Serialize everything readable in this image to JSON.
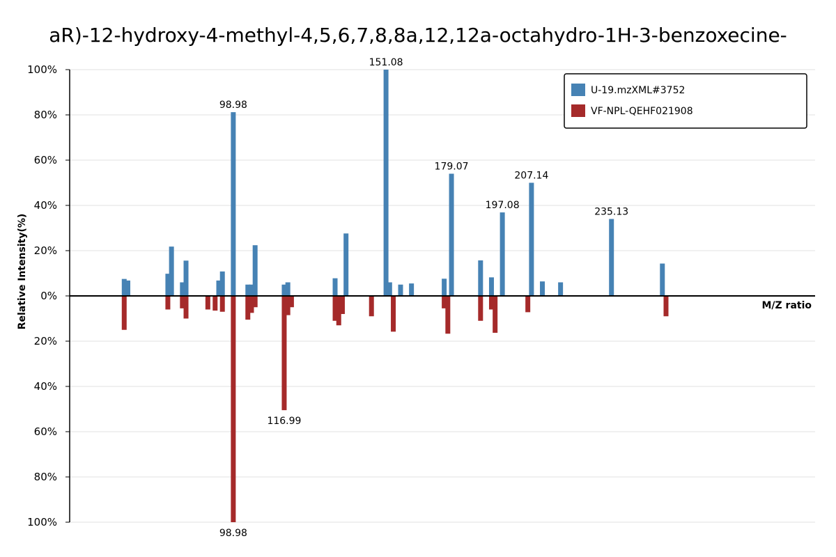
{
  "chart_data": {
    "type": "bar",
    "title": "aR)-12-hydroxy-4-methyl-4,5,6,7,8,8a,12,12a-octahydro-1H-3-benzoxecine-",
    "xlabel": "M/Z ratio",
    "ylabel": "Relative Intensity(%)",
    "ylim": [
      -100,
      100
    ],
    "y_ticks": [
      "100%",
      "80%",
      "60%",
      "40%",
      "20%",
      "0%",
      "20%",
      "40%",
      "60%",
      "80%",
      "100%"
    ],
    "legend_position": "top-right",
    "series": [
      {
        "name": "U-19.mzXML#3752",
        "color": "#4682B4",
        "direction": "up",
        "peaks": [
          {
            "mz": 55.0,
            "intensity": 7.5
          },
          {
            "mz": 56.0,
            "intensity": 6.8
          },
          {
            "mz": 67.0,
            "intensity": 9.8
          },
          {
            "mz": 68.0,
            "intensity": 21.8
          },
          {
            "mz": 71.0,
            "intensity": 6.0
          },
          {
            "mz": 72.0,
            "intensity": 15.6
          },
          {
            "mz": 81.0,
            "intensity": 6.8
          },
          {
            "mz": 82.0,
            "intensity": 10.8
          },
          {
            "mz": 85.0,
            "intensity": 81.2
          },
          {
            "mz": 89.0,
            "intensity": 5.0
          },
          {
            "mz": 90.0,
            "intensity": 5.0
          },
          {
            "mz": 91.0,
            "intensity": 22.4
          },
          {
            "mz": 99.0,
            "intensity": 5.0
          },
          {
            "mz": 100.0,
            "intensity": 6.0
          },
          {
            "mz": 113.0,
            "intensity": 7.8
          },
          {
            "mz": 116.0,
            "intensity": 27.6
          },
          {
            "mz": 127.0,
            "intensity": 100.0
          },
          {
            "mz": 128.0,
            "intensity": 6.0
          },
          {
            "mz": 131.0,
            "intensity": 5.0
          },
          {
            "mz": 134.0,
            "intensity": 5.5
          },
          {
            "mz": 143.0,
            "intensity": 7.6
          },
          {
            "mz": 145.0,
            "intensity": 54.0
          },
          {
            "mz": 153.0,
            "intensity": 15.7
          },
          {
            "mz": 156.0,
            "intensity": 8.2
          },
          {
            "mz": 159.0,
            "intensity": 36.9
          },
          {
            "mz": 167.0,
            "intensity": 50.0
          },
          {
            "mz": 170.0,
            "intensity": 6.4
          },
          {
            "mz": 175.0,
            "intensity": 6.0
          },
          {
            "mz": 189.0,
            "intensity": 34.0
          },
          {
            "mz": 203.0,
            "intensity": 14.3
          }
        ]
      },
      {
        "name": "VF-NPL-QEHF021908",
        "color": "#A52A2A",
        "direction": "down",
        "peaks": [
          {
            "mz": 55.0,
            "intensity": 15.0
          },
          {
            "mz": 67.0,
            "intensity": 6.0
          },
          {
            "mz": 71.0,
            "intensity": 5.5
          },
          {
            "mz": 72.0,
            "intensity": 10.0
          },
          {
            "mz": 78.0,
            "intensity": 6.0
          },
          {
            "mz": 80.0,
            "intensity": 6.5
          },
          {
            "mz": 82.0,
            "intensity": 7.0
          },
          {
            "mz": 85.0,
            "intensity": 100.0
          },
          {
            "mz": 89.0,
            "intensity": 10.5
          },
          {
            "mz": 90.0,
            "intensity": 7.5
          },
          {
            "mz": 91.0,
            "intensity": 5.0
          },
          {
            "mz": 99.0,
            "intensity": 50.5
          },
          {
            "mz": 100.0,
            "intensity": 8.5
          },
          {
            "mz": 101.0,
            "intensity": 5.0
          },
          {
            "mz": 113.0,
            "intensity": 11.0
          },
          {
            "mz": 114.0,
            "intensity": 13.0
          },
          {
            "mz": 115.0,
            "intensity": 8.0
          },
          {
            "mz": 123.0,
            "intensity": 9.0
          },
          {
            "mz": 129.0,
            "intensity": 15.8
          },
          {
            "mz": 143.0,
            "intensity": 5.5
          },
          {
            "mz": 144.0,
            "intensity": 16.7
          },
          {
            "mz": 153.0,
            "intensity": 11.0
          },
          {
            "mz": 156.0,
            "intensity": 6.0
          },
          {
            "mz": 157.0,
            "intensity": 16.3
          },
          {
            "mz": 166.0,
            "intensity": 7.2
          },
          {
            "mz": 204.0,
            "intensity": 9.0
          }
        ]
      }
    ],
    "annotations": [
      {
        "text": "98.98",
        "mz": 85.0,
        "series": 0
      },
      {
        "text": "151.08",
        "mz": 127.0,
        "series": 0
      },
      {
        "text": "179.07",
        "mz": 145.0,
        "series": 0
      },
      {
        "text": "197.08",
        "mz": 159.0,
        "series": 0
      },
      {
        "text": "207.14",
        "mz": 167.0,
        "series": 0
      },
      {
        "text": "235.13",
        "mz": 189.0,
        "series": 0
      },
      {
        "text": "98.98",
        "mz": 85.0,
        "series": 1
      },
      {
        "text": "116.99",
        "mz": 99.0,
        "series": 1
      }
    ]
  }
}
